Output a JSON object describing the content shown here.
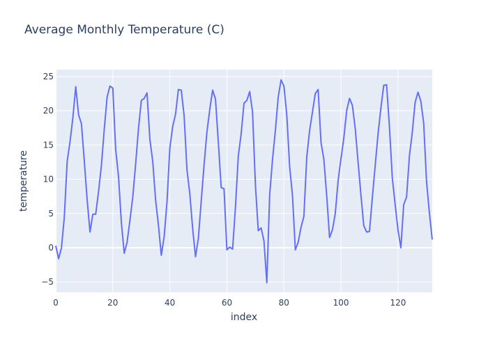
{
  "chart_data": {
    "type": "line",
    "title": "Average Monthly Temperature (C)",
    "xlabel": "index",
    "ylabel": "temperature",
    "xlim": [
      0,
      132
    ],
    "ylim": [
      -6.5,
      26
    ],
    "x_ticks": [
      0,
      20,
      40,
      60,
      80,
      100,
      120
    ],
    "y_ticks": [
      -5,
      0,
      5,
      10,
      15,
      20,
      25
    ],
    "grid": true,
    "line_color": "#636efa",
    "plot_bg": "#e5ecf6",
    "series": [
      {
        "values": [
          0.3,
          -1.6,
          0,
          4.5,
          12.6,
          15.5,
          19,
          23.5,
          19.4,
          18.1,
          12.7,
          7,
          2.3,
          4.9,
          4.9,
          8.2,
          12,
          17.3,
          22,
          23.6,
          23.3,
          14.4,
          10.4,
          3.7,
          -0.8,
          0.8,
          4,
          7.4,
          12.2,
          17.4,
          21.5,
          21.8,
          22.6,
          15.8,
          12.6,
          7,
          3.3,
          -1.1,
          1.6,
          6.7,
          14.6,
          17.7,
          19.5,
          23.1,
          23,
          19.3,
          11.4,
          7.9,
          2.8,
          -1.3,
          1.4,
          6.8,
          12.1,
          16.9,
          20.2,
          23,
          21.7,
          15.4,
          8.8,
          8.6,
          -0.3,
          0.1,
          -0.2,
          5.9,
          13.4,
          16.6,
          21.1,
          21.5,
          22.8,
          19.8,
          9.2,
          2.5,
          2.9,
          1,
          -5.1,
          7.7,
          12.9,
          17.1,
          22,
          24.5,
          23.6,
          19.4,
          11.9,
          7.6,
          -0.3,
          0.8,
          3,
          4.6,
          13.2,
          17.1,
          19.8,
          22.5,
          23.1,
          15.4,
          12.9,
          7.6,
          1.5,
          2.6,
          5,
          9.8,
          13,
          16,
          20,
          21.8,
          20.8,
          17.4,
          12.5,
          7.7,
          3.2,
          2.3,
          2.4,
          7.3,
          12,
          16.6,
          20.4,
          23.7,
          23.8,
          17.6,
          10.2,
          6.3,
          2.6,
          0,
          6.3,
          7.4,
          13.4,
          16.8,
          21.2,
          22.7,
          21.4,
          18.2,
          9.7,
          5.1,
          1.2
        ]
      }
    ]
  }
}
